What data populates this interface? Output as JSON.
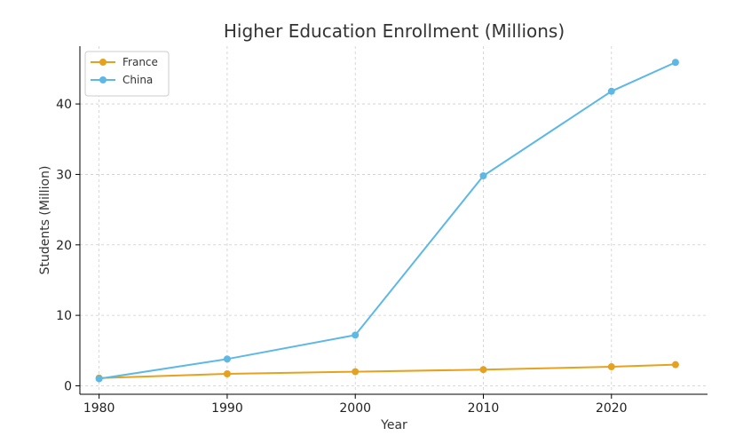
{
  "chart_data": {
    "type": "line",
    "title": "Higher Education Enrollment (Millions)",
    "xlabel": "Year",
    "ylabel": "Students (Million)",
    "x": [
      1980,
      1990,
      2000,
      2010,
      2020,
      2025
    ],
    "xlim": [
      1978.5,
      2027.5
    ],
    "ylim": [
      -1.2,
      48.2
    ],
    "xticks": [
      1980,
      1990,
      2000,
      2010,
      2020
    ],
    "yticks": [
      0,
      10,
      20,
      30,
      40
    ],
    "grid": true,
    "legend_position": "top-left",
    "series": [
      {
        "name": "France",
        "color": "#E6A21E",
        "values": [
          1.1,
          1.7,
          2.0,
          2.3,
          2.7,
          3.0
        ]
      },
      {
        "name": "China",
        "color": "#5DB8E6",
        "values": [
          1.0,
          3.8,
          7.2,
          29.8,
          41.8,
          45.9
        ]
      }
    ]
  }
}
